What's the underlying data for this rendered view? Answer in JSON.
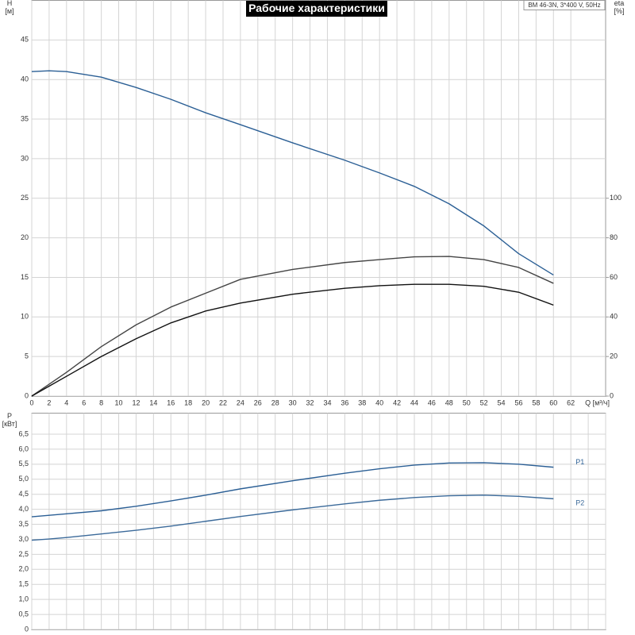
{
  "chart_data": [
    {
      "type": "line",
      "title": "Рабочие характеристики",
      "annotation": "BM 46-3N, 3*400 V, 50Hz",
      "xlabel": "Q [м³/ч]",
      "ylabel": "H",
      "yunit": "[м]",
      "y2label": "eta",
      "y2unit": "[%]",
      "x": [
        0,
        2,
        4,
        8,
        12,
        16,
        20,
        24,
        30,
        36,
        40,
        44,
        48,
        52,
        56,
        60
      ],
      "xlim": [
        0,
        66
      ],
      "xticks": [
        0,
        2,
        4,
        6,
        8,
        10,
        12,
        14,
        16,
        18,
        20,
        22,
        24,
        26,
        28,
        30,
        32,
        34,
        36,
        38,
        40,
        42,
        44,
        46,
        48,
        50,
        52,
        54,
        56,
        58,
        60,
        62
      ],
      "ylim": [
        0,
        50
      ],
      "yticks": [
        0,
        5,
        10,
        15,
        20,
        25,
        30,
        35,
        40,
        45
      ],
      "y2lim": [
        0,
        200
      ],
      "y2ticks": [
        0,
        20,
        40,
        60,
        80,
        100
      ],
      "grid": true,
      "series": [
        {
          "color": "#2b5f95",
          "values": [
            41,
            41.1,
            41,
            40.3,
            39,
            37.5,
            35.8,
            34.3,
            32,
            29.8,
            28.2,
            26.5,
            24.3,
            21.5,
            18,
            15.3
          ]
        },
        {
          "color": "#444444",
          "axis": "y2",
          "values": [
            0,
            6,
            12,
            25,
            36,
            45,
            52,
            59,
            64,
            67.5,
            69,
            70.4,
            70.6,
            69,
            65,
            57
          ]
        },
        {
          "color": "#111111",
          "axis": "y2",
          "values": [
            0,
            5,
            10,
            20,
            29,
            37,
            43,
            47,
            51.5,
            54.5,
            55.8,
            56.5,
            56.5,
            55.5,
            52.5,
            46
          ]
        }
      ]
    },
    {
      "type": "line",
      "ylabel": "P",
      "yunit": "[кВт]",
      "x": [
        0,
        2,
        4,
        8,
        12,
        16,
        20,
        24,
        30,
        36,
        40,
        44,
        48,
        52,
        56,
        60
      ],
      "xlim": [
        0,
        66
      ],
      "xticks": [
        0,
        2,
        4,
        6,
        8,
        10,
        12,
        14,
        16,
        18,
        20,
        22,
        24,
        26,
        28,
        30,
        32,
        34,
        36,
        38,
        40,
        42,
        44,
        46,
        48,
        50,
        52,
        54,
        56,
        58,
        60,
        62,
        64,
        66
      ],
      "ylim": [
        0,
        7.2
      ],
      "grid": true,
      "yticks": [
        0,
        {
          "value": 0.5,
          "label": "0,5"
        },
        {
          "value": 1.0,
          "label": "1,0"
        },
        {
          "value": 1.5,
          "label": "1,5"
        },
        {
          "value": 2.0,
          "label": "2,0"
        },
        {
          "value": 2.5,
          "label": "2,5"
        },
        {
          "value": 3.0,
          "label": "3,0"
        },
        {
          "value": 3.5,
          "label": "3,5"
        },
        {
          "value": 4.0,
          "label": "4,0"
        },
        {
          "value": 4.5,
          "label": "4,5"
        },
        {
          "value": 5.0,
          "label": "5,0"
        },
        {
          "value": 5.5,
          "label": "5,5"
        },
        {
          "value": 6.0,
          "label": "6,0"
        },
        {
          "value": 6.5,
          "label": "6,5"
        }
      ],
      "series": [
        {
          "name": "P1",
          "color": "#2b5f95",
          "values": [
            3.75,
            3.8,
            3.85,
            3.95,
            4.1,
            4.28,
            4.47,
            4.68,
            4.95,
            5.2,
            5.35,
            5.47,
            5.54,
            5.55,
            5.5,
            5.4
          ]
        },
        {
          "name": "P2",
          "color": "#3b6a9a",
          "values": [
            2.97,
            3.01,
            3.06,
            3.18,
            3.3,
            3.44,
            3.6,
            3.76,
            3.98,
            4.18,
            4.3,
            4.39,
            4.45,
            4.47,
            4.43,
            4.35
          ]
        }
      ]
    }
  ]
}
